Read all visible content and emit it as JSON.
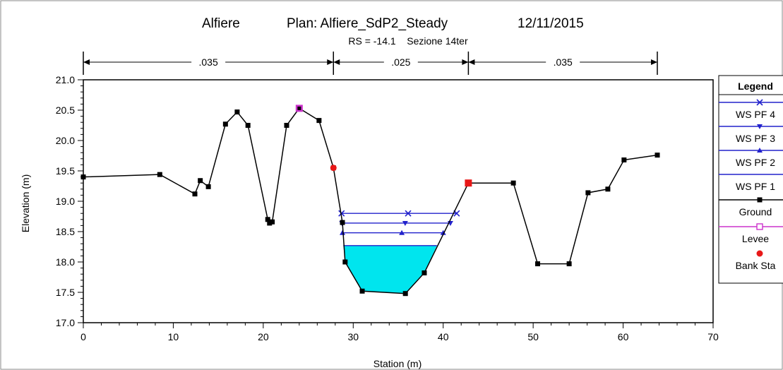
{
  "chart_data": {
    "type": "line",
    "title": {
      "project": "Alfiere",
      "plan": "Plan: Alfiere_SdP2_Steady",
      "date": "12/11/2015"
    },
    "subtitle": "RS = -14.1    Sezione 14ter",
    "xlabel": "Station (m)",
    "ylabel": "Elevation (m)",
    "xlim": [
      0,
      70
    ],
    "ylim": [
      17.0,
      21.0
    ],
    "x_ticks": [
      "0",
      "10",
      "20",
      "30",
      "40",
      "50",
      "60",
      "70"
    ],
    "y_ticks": [
      "17.0",
      "17.5",
      "18.0",
      "18.5",
      "19.0",
      "19.5",
      "20.0",
      "20.5",
      "21.0"
    ],
    "mannings": [
      {
        "x_start": 0,
        "x_end": 27.8,
        "label": ".035"
      },
      {
        "x_start": 27.8,
        "x_end": 42.8,
        "label": ".025"
      },
      {
        "x_start": 42.8,
        "x_end": 63.8,
        "label": ".035"
      }
    ],
    "ground": {
      "name": "Ground",
      "color": "#000000",
      "x": [
        0,
        8.5,
        12.4,
        13.0,
        13.9,
        15.8,
        17.1,
        18.3,
        20.5,
        20.7,
        21.0,
        22.6,
        24.0,
        26.2,
        27.8,
        28.8,
        29.1,
        31.0,
        35.8,
        37.9,
        42.8,
        47.8,
        50.5,
        54.0,
        56.1,
        58.3,
        60.1,
        63.8
      ],
      "y": [
        19.4,
        19.44,
        19.12,
        19.34,
        19.24,
        20.27,
        20.47,
        20.25,
        18.7,
        18.64,
        18.66,
        20.25,
        20.53,
        20.33,
        19.55,
        18.65,
        18.0,
        17.52,
        17.48,
        17.82,
        19.3,
        19.3,
        17.97,
        17.97,
        19.14,
        19.2,
        19.68,
        19.76
      ]
    },
    "water_surfaces": [
      {
        "name": "WS PF 4",
        "elevation": 18.8,
        "x_left": 28.7,
        "x_right": 41.5,
        "marker": "x",
        "color": "#2222cc"
      },
      {
        "name": "WS PF 3",
        "elevation": 18.64,
        "x_left": 28.75,
        "x_right": 40.8,
        "marker": "triangle-down",
        "color": "#2222cc"
      },
      {
        "name": "WS PF 2",
        "elevation": 18.48,
        "x_left": 28.8,
        "x_right": 40.0,
        "marker": "triangle-up",
        "color": "#2222cc"
      },
      {
        "name": "WS PF 1",
        "elevation": 18.27,
        "x_left": 28.9,
        "x_right": 39.3,
        "marker": "none",
        "color": "#2222cc",
        "fill": "#00e5ee"
      }
    ],
    "levee": {
      "name": "Levee",
      "x": [
        24.0
      ],
      "y": [
        20.53
      ],
      "color": "#cc33cc"
    },
    "bank_stations": {
      "name": "Bank Sta",
      "x": [
        27.8,
        42.8
      ],
      "y": [
        19.55,
        19.3
      ],
      "color": "#e81818"
    },
    "legend": {
      "title": "Legend",
      "placement": "right",
      "entries": [
        "WS PF 4",
        "WS PF 3",
        "WS PF 2",
        "WS PF 1",
        "Ground",
        "Levee",
        "Bank Sta"
      ]
    },
    "grid": false
  }
}
